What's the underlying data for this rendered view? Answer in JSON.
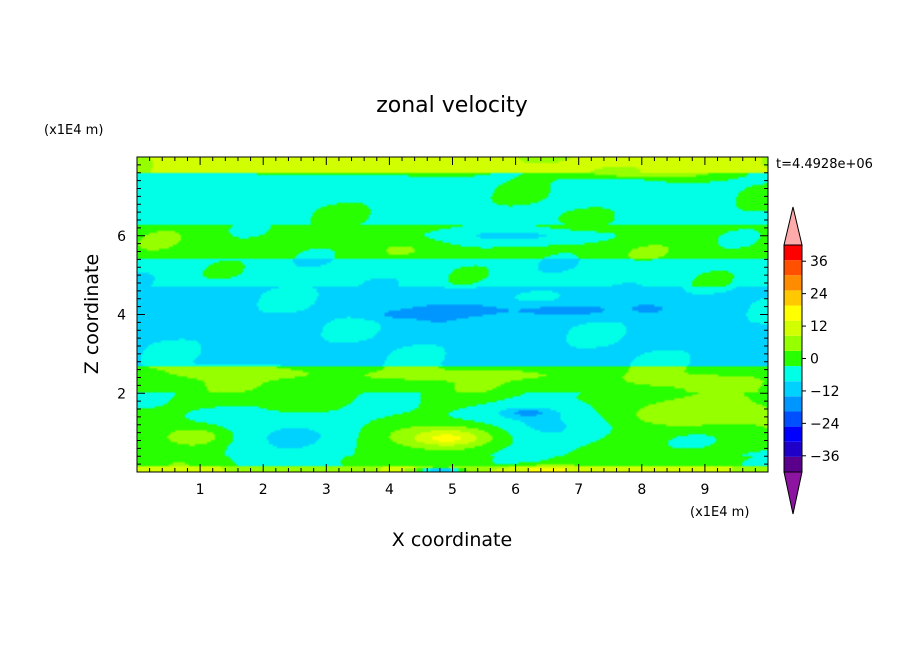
{
  "chart_data": {
    "type": "heatmap",
    "title": "zonal velocity",
    "xlabel": "X coordinate",
    "ylabel": "Z coordinate",
    "x_unit": "(x1E4 m)",
    "y_unit": "(x1E4 m)",
    "time_label": "t=4.4928e+06",
    "xlim": [
      0,
      10
    ],
    "ylim": [
      0,
      8
    ],
    "x_ticks": [
      "1",
      "2",
      "3",
      "4",
      "5",
      "6",
      "7",
      "8",
      "9"
    ],
    "y_ticks": [
      "2",
      "4",
      "6"
    ],
    "colorbar": {
      "ticks": [
        "36",
        "24",
        "12",
        "0",
        "-12",
        "-24",
        "-36"
      ],
      "levels": [
        -42,
        -36,
        -30,
        -24,
        -18,
        -12,
        -6,
        0,
        6,
        12,
        18,
        24,
        30,
        36,
        42
      ],
      "colors": [
        "#5a008c",
        "#1e00c8",
        "#0000ff",
        "#0050ff",
        "#0096ff",
        "#00d2ff",
        "#00ffe6",
        "#28ff00",
        "#96ff00",
        "#d2ff00",
        "#ffff00",
        "#ffc800",
        "#ff8c00",
        "#ff5000",
        "#ff0000"
      ],
      "under_color": "#8c14a0",
      "over_color": "#ffaaaa"
    },
    "field_bands": [
      {
        "z": [
          0.0,
          0.15
        ],
        "value": 14
      },
      {
        "z": [
          0.15,
          0.4
        ],
        "value": 3
      },
      {
        "z": [
          0.4,
          2.0
        ],
        "value": 2
      },
      {
        "z": [
          2.0,
          2.7
        ],
        "value": 4
      },
      {
        "z": [
          2.7,
          4.7
        ],
        "value": -8
      },
      {
        "z": [
          4.7,
          5.4
        ],
        "value": -3
      },
      {
        "z": [
          5.4,
          6.3
        ],
        "value": 3
      },
      {
        "z": [
          6.3,
          7.6
        ],
        "value": -2
      },
      {
        "z": [
          7.6,
          8.0
        ],
        "value": 14
      }
    ],
    "field_features": [
      {
        "x": 4.2,
        "z": 4.0,
        "rx": 0.45,
        "rz": 0.13,
        "value": -14
      },
      {
        "x": 5.1,
        "z": 4.1,
        "rx": 1.0,
        "rz": 0.2,
        "value": -14
      },
      {
        "x": 6.7,
        "z": 4.1,
        "rx": 1.0,
        "rz": 0.18,
        "value": -14
      },
      {
        "x": 8.1,
        "z": 4.15,
        "rx": 0.3,
        "rz": 0.12,
        "value": -14
      },
      {
        "x": 1.8,
        "z": 2.5,
        "rx": 1.2,
        "rz": 0.15,
        "value": 10
      },
      {
        "x": 5.3,
        "z": 2.45,
        "rx": 1.8,
        "rz": 0.13,
        "value": 9
      },
      {
        "x": 8.8,
        "z": 2.3,
        "rx": 1.0,
        "rz": 0.15,
        "value": 9
      },
      {
        "x": 2.5,
        "z": 0.9,
        "rx": 1.3,
        "rz": 0.7,
        "value": -7
      },
      {
        "x": 6.4,
        "z": 1.2,
        "rx": 1.2,
        "rz": 0.65,
        "value": -8
      },
      {
        "x": 6.2,
        "z": 1.5,
        "rx": 0.4,
        "rz": 0.12,
        "value": -15
      },
      {
        "x": 0.9,
        "z": 0.9,
        "rx": 0.55,
        "rz": 0.3,
        "value": 10
      },
      {
        "x": 4.9,
        "z": 0.9,
        "rx": 0.9,
        "rz": 0.35,
        "value": 14
      },
      {
        "x": 4.9,
        "z": 0.85,
        "rx": 0.4,
        "rz": 0.15,
        "value": 20
      },
      {
        "x": 8.8,
        "z": 1.5,
        "rx": 1.2,
        "rz": 0.4,
        "value": 12
      },
      {
        "x": 6.5,
        "z": 0.05,
        "rx": 0.6,
        "rz": 0.12,
        "value": 20
      },
      {
        "x": 4.8,
        "z": 0.05,
        "rx": 0.4,
        "rz": 0.08,
        "value": -13
      },
      {
        "x": 3.0,
        "z": 7.3,
        "rx": 1.5,
        "rz": 0.25,
        "value": -6
      },
      {
        "x": 6.0,
        "z": 6.0,
        "rx": 1.6,
        "rz": 0.22,
        "value": -7
      },
      {
        "x": 3.6,
        "z": 7.75,
        "rx": 1.4,
        "rz": 0.18,
        "value": 18
      },
      {
        "x": 8.0,
        "z": 7.6,
        "rx": 1.2,
        "rz": 0.15,
        "value": 12
      }
    ]
  }
}
